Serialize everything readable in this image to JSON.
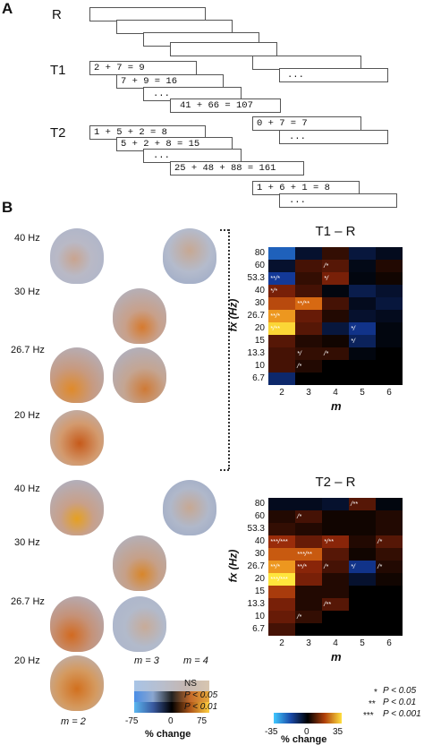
{
  "panelA": {
    "letter": "A",
    "rows": {
      "R": "R",
      "T1": "T1",
      "T2": "T2"
    },
    "t1_equations": [
      "2 + 7 = 9",
      "7 + 9 = 16",
      "...",
      "41 + 66 = 107"
    ],
    "t1_right": [
      "..."
    ],
    "t2_equations": [
      "1 + 5 + 2 = 8",
      "5 + 2 + 8 = 15",
      "...",
      "25 + 48 + 88 = 161"
    ],
    "t2_right_top": [
      "0 + 7 = 7",
      "..."
    ],
    "t2_right_bottom": [
      "1 + 6 + 1 = 8",
      "..."
    ],
    "r_ellipsis": "..."
  },
  "panelB": {
    "letter": "B",
    "freq_labels_top": [
      "40 Hz",
      "30 Hz",
      "26.7 Hz",
      "20 Hz"
    ],
    "freq_labels_bottom": [
      "40 Hz",
      "30 Hz",
      "26.7 Hz",
      "20 Hz"
    ],
    "m_labels": {
      "m2": "m = 2",
      "m3": "m = 3",
      "m4": "m = 4"
    },
    "small_legend": {
      "ns": "NS",
      "p05": "P < 0.05",
      "p01": "P < 0.01",
      "ticks": [
        "-75",
        "0",
        "75"
      ],
      "label": "% change"
    },
    "big_legend": {
      "ticks": [
        "-35",
        "0",
        "35"
      ],
      "label": "% change"
    },
    "sig_legend": [
      "P < 0.05",
      "P < 0.01",
      "P < 0.001"
    ],
    "sig_marks": [
      "*",
      "**",
      "***"
    ]
  },
  "chart_data": [
    {
      "type": "heatmap",
      "title": "T1 – R",
      "xlabel": "m",
      "ylabel": "fx (Hz)",
      "x": [
        "2",
        "3",
        "4",
        "5",
        "6"
      ],
      "y": [
        "80",
        "60",
        "53.3",
        "40",
        "30",
        "26.7",
        "20",
        "15",
        "13.3",
        "10",
        "6.7"
      ],
      "z_range": [
        -35,
        35
      ],
      "values": [
        [
          -25,
          -6,
          6,
          -8,
          -4
        ],
        [
          -6,
          8,
          10,
          -3,
          4
        ],
        [
          -20,
          6,
          14,
          -2,
          2
        ],
        [
          14,
          8,
          -2,
          -10,
          -6
        ],
        [
          22,
          26,
          8,
          -4,
          -8
        ],
        [
          30,
          12,
          4,
          -6,
          -4
        ],
        [
          34,
          10,
          -8,
          -18,
          -2
        ],
        [
          10,
          4,
          2,
          -12,
          -2
        ],
        [
          8,
          6,
          6,
          -2,
          0
        ],
        [
          8,
          4,
          0,
          0,
          0
        ],
        [
          -14,
          0,
          0,
          0,
          0
        ]
      ],
      "annotations": [
        {
          "row": "53.3",
          "col": "2",
          "text": "**/*"
        },
        {
          "row": "60",
          "col": "4",
          "text": "/*"
        },
        {
          "row": "53.3",
          "col": "4",
          "text": "*/"
        },
        {
          "row": "40",
          "col": "2",
          "text": "*/*"
        },
        {
          "row": "30",
          "col": "3",
          "text": "**/**"
        },
        {
          "row": "26.7",
          "col": "2",
          "text": "**/*"
        },
        {
          "row": "20",
          "col": "2",
          "text": "*/**"
        },
        {
          "row": "20",
          "col": "5",
          "text": "*/"
        },
        {
          "row": "15",
          "col": "5",
          "text": "*/"
        },
        {
          "row": "13.3",
          "col": "3",
          "text": "*/"
        },
        {
          "row": "13.3",
          "col": "4",
          "text": "/*"
        },
        {
          "row": "10",
          "col": "3",
          "text": "/*"
        }
      ]
    },
    {
      "type": "heatmap",
      "title": "T2 – R",
      "xlabel": "m",
      "ylabel": "fx (Hz)",
      "x": [
        "2",
        "3",
        "4",
        "5",
        "6"
      ],
      "y": [
        "80",
        "60",
        "53.3",
        "40",
        "30",
        "26.7",
        "20",
        "15",
        "13.3",
        "10",
        "6.7"
      ],
      "z_range": [
        -35,
        35
      ],
      "values": [
        [
          -4,
          -4,
          -6,
          10,
          -2
        ],
        [
          4,
          8,
          2,
          2,
          4
        ],
        [
          6,
          4,
          2,
          2,
          4
        ],
        [
          18,
          12,
          16,
          4,
          10
        ],
        [
          24,
          24,
          10,
          2,
          6
        ],
        [
          30,
          16,
          8,
          -18,
          4
        ],
        [
          35,
          14,
          4,
          -6,
          2
        ],
        [
          20,
          4,
          4,
          0,
          0
        ],
        [
          14,
          4,
          10,
          0,
          0
        ],
        [
          12,
          6,
          0,
          0,
          0
        ],
        [
          8,
          0,
          0,
          0,
          0
        ]
      ],
      "annotations": [
        {
          "row": "80",
          "col": "5",
          "text": "/**"
        },
        {
          "row": "60",
          "col": "3",
          "text": "/*"
        },
        {
          "row": "40",
          "col": "2",
          "text": "***/***"
        },
        {
          "row": "40",
          "col": "4",
          "text": "*/**"
        },
        {
          "row": "40",
          "col": "6",
          "text": "/*"
        },
        {
          "row": "30",
          "col": "3",
          "text": "***/**"
        },
        {
          "row": "26.7",
          "col": "2",
          "text": "**/*"
        },
        {
          "row": "26.7",
          "col": "3",
          "text": "**/*"
        },
        {
          "row": "26.7",
          "col": "4",
          "text": "/*"
        },
        {
          "row": "26.7",
          "col": "5",
          "text": "*/"
        },
        {
          "row": "26.7",
          "col": "6",
          "text": "/*"
        },
        {
          "row": "20",
          "col": "2",
          "text": "***/***"
        },
        {
          "row": "13.3",
          "col": "4",
          "text": "/**"
        },
        {
          "row": "10",
          "col": "3",
          "text": "/*"
        }
      ]
    }
  ]
}
